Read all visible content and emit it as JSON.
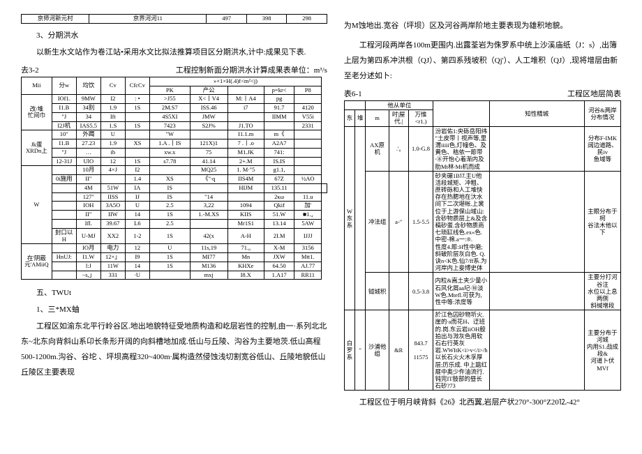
{
  "left": {
    "topTable": {
      "cells": [
        "京师河新元村",
        "京界河河11",
        "497",
        "398",
        "298"
      ]
    },
    "h3": "3、分期洪水",
    "p1": "以新生水文站作为卷江站•采用水文比拟法推算项目区分期洪水,计中:成果见下表.",
    "cap32_left": "去3-2",
    "cap32_right": "工程控制新面分期洪水计算成果表单位：m³/s",
    "t32": {
      "header1": [
        "Mii",
        "分w",
        "均饮",
        "Cv",
        "CfcCv",
        "»×1×H(.4)f<m²<j)",
        "",
        "",
        "",
        ""
      ],
      "header2": [
        "",
        "",
        "",
        "",
        "",
        "PK",
        "产公",
        "",
        "p=kr<",
        "P8"
      ],
      "rows": [
        [
          "改/堆\n忙间巾",
          "IOf1.",
          "9MW",
          "I2",
          ":  •",
          ">J55",
          "X<丨V4",
          "M:丨A4",
          "pg",
          ""
        ],
        [
          "",
          "I1.B",
          "34别",
          "1.9",
          "1S",
          "2M.S7",
          "ISS.46",
          "i7",
          "91.7",
          "4120"
        ],
        [
          "",
          "\"J",
          "34",
          "Ift",
          "",
          "4S5XI",
          "JMW",
          "",
          "IIMM",
          "V55i"
        ],
        [
          "",
          "I2J机",
          "IAS5.5",
          "1.S",
          "1S",
          "7423",
          "S2J%",
          "J1.TO",
          "",
          "2331"
        ],
        [
          "Jk蛋\nXRDn上",
          "10\"",
          "外躅",
          "U",
          "",
          "\"W",
          "",
          "I1.1.m",
          "m《",
          ""
        ],
        [
          "",
          "I1.B",
          "27.23",
          "1.9",
          "XS",
          "1.A  .丨IS",
          "121X)1 ",
          "7  .丨.o",
          "A2A7",
          ""
        ],
        [
          "",
          "\"J",
          "…",
          "ib",
          "",
          "xw.x",
          "75",
          "M1.JK",
          "741:",
          ""
        ],
        [
          "",
          "12-31J",
          "UlO",
          "12",
          "1S",
          "s7.78",
          "41.14",
          "2+.M",
          "IS.IS",
          ""
        ],
        [
          "W",
          "",
          "10月",
          "4×J",
          "I2",
          "",
          "MQ25",
          "1.  M∙\"5",
          "g1.1,",
          ""
        ],
        [
          "",
          "0i施用",
          "II\"",
          "",
          "1.4",
          "XS",
          "《\"∙q   ",
          "IIS4M",
          "67Z",
          "½AO"
        ],
        [
          "",
          "",
          "4M",
          "51W",
          "IA",
          "IS",
          "",
          "HIJM",
          "135.11",
          "",
          ""
        ],
        [
          "",
          "",
          "127\"",
          "IISS",
          "IJ",
          "IS",
          "\"14",
          "",
          "2κω",
          "11.u"
        ],
        [
          "",
          "",
          "IOH",
          "3A5O",
          "U",
          "2.5",
          "3,22",
          "1094",
          "Qkif",
          "加'"
        ],
        [
          "",
          "",
          "II\"",
          "IIW",
          "14",
          "1S",
          "1.-M.XS",
          "KIIS",
          "51.W",
          "■1.₄"
        ],
        [
          "",
          "",
          "Ifl.",
          "39.67",
          "L6",
          "2.5",
          "",
          "Mr1S1",
          "13.14",
          "5AW"
        ],
        [
          "",
          "封口以H",
          "U-MJ",
          "XX2",
          "1-2",
          "1S",
          "42(x",
          "A-H",
          "2I.M",
          "IJJJ"
        ],
        [
          "在'阴蔽元'AMiiQ",
          "",
          "IO月",
          "电力",
          "12",
          "U",
          "11s,19",
          "71.₀",
          "X-M",
          "3156"
        ],
        [
          "",
          "HnUJ:",
          "I1.W",
          "12×」",
          "I9",
          "1S",
          "MI77",
          "Mn",
          "JXW",
          "Mtt1."
        ],
        [
          "",
          "",
          "l:J",
          "11W",
          "14",
          "1S",
          "M136",
          "KHXe",
          "64.50",
          "AJ.77"
        ],
        [
          "",
          "",
          "−s,」",
          "331",
          "∙U",
          "",
          "mxj",
          "I8.X",
          "1.A17",
          "RR11"
        ]
      ]
    },
    "h5": "五、TWUt",
    "h5_1": "1、三*MX蚰",
    "p2": "工程区如渝东北平行岭谷区.地出地貌特征受地质构造和屹层岩性的控制,由一·系列北北东~北东向背斜山系卬长条形开阔的向斜槽地加成.低山与丘陵、沟谷为主要地茨.低山高程500-1200m.沟谷、谷坨 、坪坝高程320~400m∙属构造然侵蚀浅切割宽谷低山、丘陵地貌低山丘陵区主要表现"
  },
  "right": {
    "p1": "为M蚀地出.宽谷（坪坝）区及河谷两岸阶地主要表现为雄积地貌。",
    "p2": "工程河段两岸各100m更围内.出露荃岩为侏罗系中统上沙溪庙纸（J：s）,出簿上层为第四系冲洪根（QJ）、第四系残坡积（Qj'）、人工堆积（QJ）,现将增层由新至老分述如卜:",
    "cap61_left": "表6-1",
    "cap61_right": "工程区地层简表",
    "t61": {
      "header": [
        "",
        "",
        "他从单位",
        "",
        "",
        "",
        "知性精城",
        "河谷&两岸分布情况"
      ],
      "header2": [
        "东",
        "堆",
        "m",
        "时|屋\n代.|",
        "万惟<r1.)",
        "",
        "",
        ""
      ],
      "rows": [
        [
          "W\n东\n系",
          "",
          "AX原机",
          ".'₀",
          "1.0-G.8",
          "汾岩佑1:央砾岳阳纬 \"土皮带丨视声等,里渭iiiii色,灯幢色、及黄色、秸依一簓带∙⑧开怡心着渐内及肋Mt林∙Mt机而成",
          "",
          "分布F-IMK阔边道路、民iv\n鱼域等"
        ],
        [
          "",
          "",
          "冲法组",
          "a-\"",
          "1.5-5.5",
          "砂夹碾1B⒘主U他活段城矩、冲粗、蔗砖砾和人工堆快存在热腮地在汏水间下二次堪帐.上裳位于上游保山域山:\n含砂物质层上&及含稿砂蛋.含砂物质商七琐缸线色.ex«色.中密-棉.a一:®.\n性度4.簓:H性中磨;斜破阶层灰白色.             Q.\n诀n<K色.仙7/ff系.为河岸内上妾博史体",
          "",
          "主眼分布于柯\n谷法木他以下"
        ],
        [
          "",
          "",
          "钺城积",
          "",
          "0.5-3.8",
          "内粒&嵩土夹少量小石风化屑aa圮∙⑩淡W色.Mtefl.可获为,性中等:浓度等",
          "",
          "主要分打河谷注\n水位以上息两侧\n斜缄增段"
        ],
        [
          "白罗\n系",
          "\"",
          "沙浦他组",
          "&R",
          "843.7\n∙\n11575",
          "於江色囚砂物圻火.崖的∙a而花H、迂班的.岗.东云岩iiOH般拍出与溦灰色用软石右行英灰岩.WWItK<i>v</i>/h以长石火火木孚厚层;历乐成.  中上踮红屣中奥少仵油流行.\n                   钝完IT肢部的昼长石砂?73",
          "",
          "主要分布于河城\n内用S1.战成段&\n河道卜伏MVf"
        ]
      ]
    },
    "p3": "工程区位于明月峡背斜《26》北西翼,岩层产状270°-300°Z20⒓-42°"
  }
}
